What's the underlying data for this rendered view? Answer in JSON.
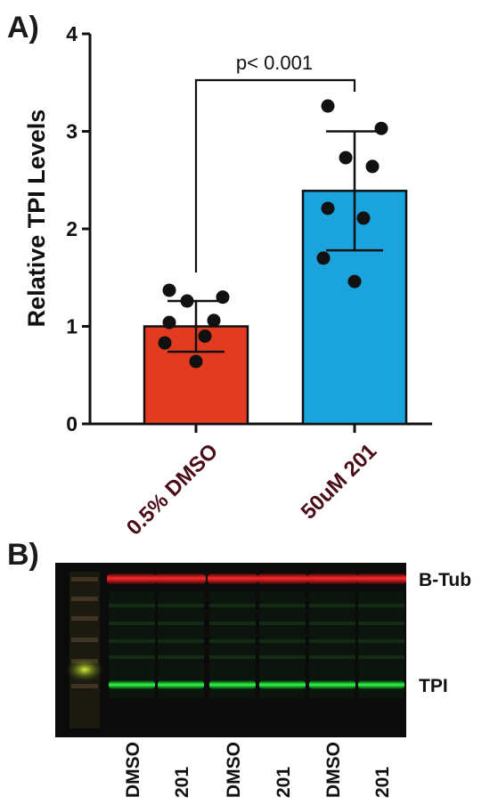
{
  "panel_a_label": "A)",
  "panel_b_label": "B)",
  "chart_data": {
    "type": "bar",
    "ylabel": "Relative TPI Levels",
    "ylim": [
      0,
      4
    ],
    "yticks": [
      "0",
      "1",
      "2",
      "3",
      "4"
    ],
    "categories": [
      "0.5% DMSO",
      "50uM 201"
    ],
    "values": [
      1.0,
      2.39
    ],
    "sd": [
      0.26,
      0.61
    ],
    "bar_colors": [
      "#e23b22",
      "#1aa3dc"
    ],
    "points": [
      [
        1.37,
        1.3,
        1.26,
        1.06,
        1.04,
        0.9,
        0.83,
        0.64
      ],
      [
        3.26,
        3.03,
        2.73,
        2.64,
        2.21,
        2.11,
        1.7,
        1.46
      ]
    ],
    "annotation": "p< 0.001",
    "grid": false
  },
  "blot": {
    "band_labels": [
      "B-Tub",
      "TPI"
    ],
    "lane_labels": [
      "DMSO",
      "201",
      "DMSO",
      "201",
      "DMSO",
      "201"
    ]
  }
}
